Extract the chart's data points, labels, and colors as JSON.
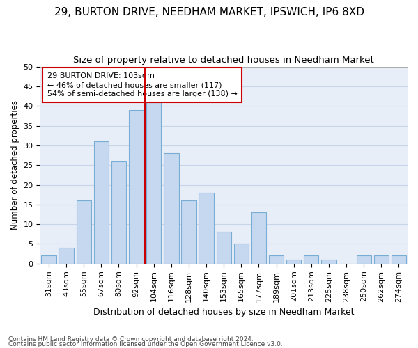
{
  "title1": "29, BURTON DRIVE, NEEDHAM MARKET, IPSWICH, IP6 8XD",
  "title2": "Size of property relative to detached houses in Needham Market",
  "xlabel": "Distribution of detached houses by size in Needham Market",
  "ylabel": "Number of detached properties",
  "footnote1": "Contains HM Land Registry data © Crown copyright and database right 2024.",
  "footnote2": "Contains public sector information licensed under the Open Government Licence v3.0.",
  "bar_labels": [
    "31sqm",
    "43sqm",
    "55sqm",
    "67sqm",
    "80sqm",
    "92sqm",
    "104sqm",
    "116sqm",
    "128sqm",
    "140sqm",
    "153sqm",
    "165sqm",
    "177sqm",
    "189sqm",
    "201sqm",
    "213sqm",
    "225sqm",
    "238sqm",
    "250sqm",
    "262sqm",
    "274sqm"
  ],
  "bar_values": [
    2,
    4,
    16,
    31,
    26,
    39,
    41,
    28,
    16,
    18,
    8,
    5,
    13,
    2,
    1,
    2,
    1,
    0,
    2,
    2,
    2
  ],
  "bar_color": "#c5d8f0",
  "bar_edge_color": "#7aadd4",
  "vline_color": "#cc0000",
  "annotation_line1": "29 BURTON DRIVE: 103sqm",
  "annotation_line2": "← 46% of detached houses are smaller (117)",
  "annotation_line3": "54% of semi-detached houses are larger (138) →",
  "annotation_box_color": "#cc0000",
  "ylim": [
    0,
    50
  ],
  "yticks": [
    0,
    5,
    10,
    15,
    20,
    25,
    30,
    35,
    40,
    45,
    50
  ],
  "grid_color": "#c8d4e8",
  "bg_color": "#e8eef8",
  "title1_fontsize": 11,
  "title2_fontsize": 9.5,
  "xlabel_fontsize": 9,
  "ylabel_fontsize": 8.5,
  "tick_fontsize": 8,
  "annotation_fontsize": 8,
  "footnote_fontsize": 6.5
}
